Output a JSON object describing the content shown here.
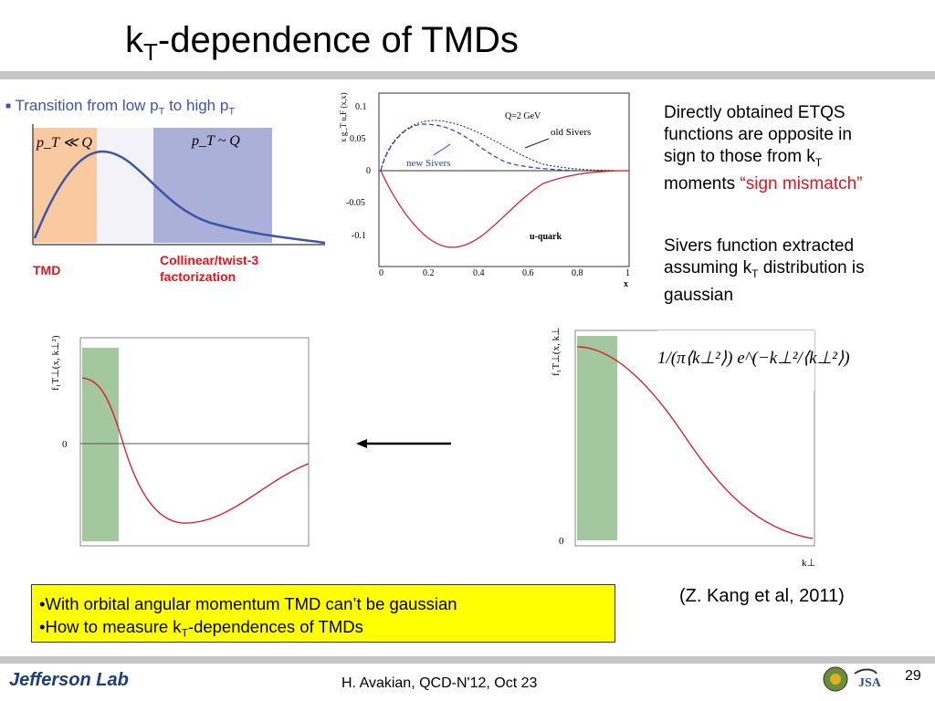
{
  "slide": {
    "title_main": "k",
    "title_sub": "T",
    "title_rest": "-dependence of TMDs",
    "page_number": "29",
    "footer": "H. Avakian, QCD-N'12,  Oct 23",
    "logo_text": "Jefferson Lab",
    "reference": "(Z. Kang et al, 2011)"
  },
  "fig_left": {
    "heading": "Transition from low p",
    "heading_sub1": "T",
    "heading_mid": " to high p",
    "heading_sub2": "T",
    "region_low": "p_T ≪ Q",
    "region_high": "p_T ~ Q",
    "label_tmd": "TMD",
    "label_collinear_1": "Collinear/twist-3",
    "label_collinear_2": "factorization",
    "colors": {
      "low": "#f9c9a0",
      "high": "#aab0d8",
      "curve": "#3d55a8",
      "label": "#e0141e"
    }
  },
  "fig_sivers": {
    "ylabel": "x g_T u,F (x,x)",
    "xlabel": "x",
    "yticks": [
      "0.1",
      "0.05",
      "0",
      "-0.05",
      "-0.1"
    ],
    "xticks": [
      "0",
      "0.2",
      "0.4",
      "0.6",
      "0.8",
      "1"
    ],
    "label_q": "Q=2 GeV",
    "label_old": "old Sivers",
    "label_new": "new Sivers",
    "label_quark": "u-quark"
  },
  "right_text": {
    "p1_a": "Directly obtained ETQS",
    "p1_b": "functions are opposite in",
    "p1_c_pre": "sign to those from k",
    "p1_c_sub": "T",
    "p1_d_pre": "moments ",
    "p1_d_open": "“",
    "p1_d_red": "sign mismatch",
    "p1_d_close": "”",
    "p2_a": "Sivers function extracted",
    "p2_b_pre": "assuming k",
    "p2_b_sub": "T",
    "p2_b_post": " distribution is",
    "p2_c": "gaussian"
  },
  "plot_left": {
    "ylabel": "f₁T⊥(x, k⊥²)",
    "zero": "0"
  },
  "plot_right": {
    "ylabel": "f₁T⊥(x, k⊥²)",
    "zero": "0",
    "xlabel": "k⊥",
    "formula": "1/(π⟨k⊥²⟩) e^(−k⊥²/⟨k⊥²⟩)"
  },
  "box": {
    "line1_pre": "•With orbital angular momentum TMD can",
    "line1_apos": "’",
    "line1_post": "t be gaussian",
    "line2_pre": "•How to measure k",
    "line2_sub": "T",
    "line2_post": "-dependences of TMDs"
  }
}
